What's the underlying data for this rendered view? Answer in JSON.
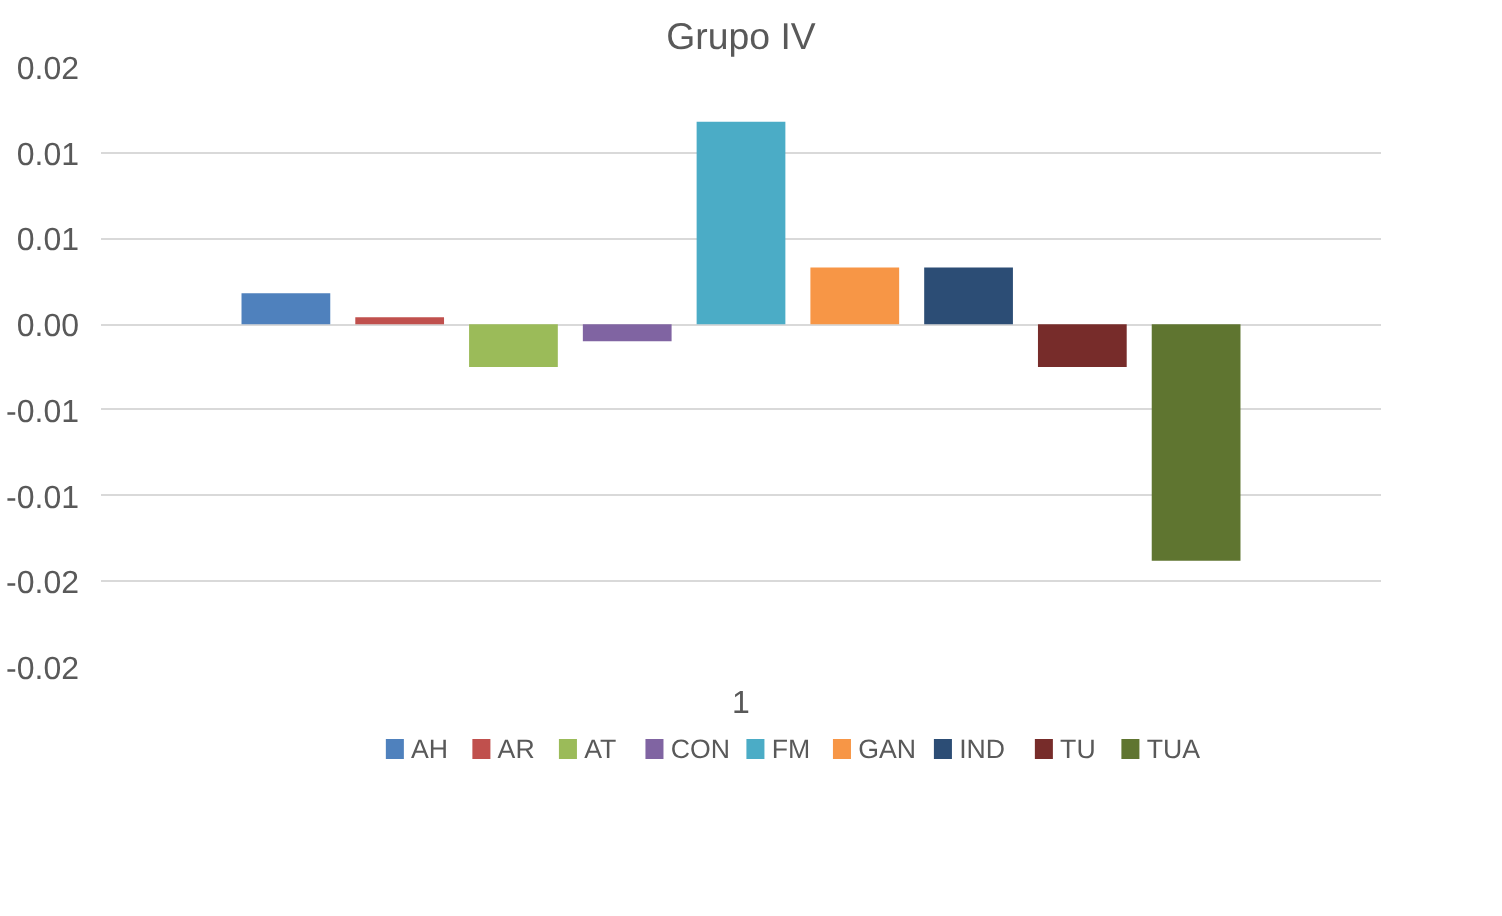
{
  "chart_data": {
    "type": "bar",
    "title": "Grupo IV",
    "categories": [
      "1"
    ],
    "series": [
      {
        "name": "AH",
        "color": "#4f81bd",
        "values": [
          0.0018
        ]
      },
      {
        "name": "AR",
        "color": "#c0504d",
        "values": [
          0.0004
        ]
      },
      {
        "name": "AT",
        "color": "#9bbb59",
        "values": [
          -0.0025
        ]
      },
      {
        "name": "CON",
        "color": "#8064a2",
        "values": [
          -0.001
        ]
      },
      {
        "name": "FM",
        "color": "#4bacc6",
        "values": [
          0.0118
        ]
      },
      {
        "name": "GAN",
        "color": "#f79646",
        "values": [
          0.0033
        ]
      },
      {
        "name": "IND",
        "color": "#2c4d75",
        "values": [
          0.0033
        ]
      },
      {
        "name": "TU",
        "color": "#772c2a",
        "values": [
          -0.0025
        ]
      },
      {
        "name": "TUA",
        "color": "#5f7530",
        "values": [
          -0.0138
        ]
      }
    ],
    "ylim": [
      -0.02,
      0.015
    ],
    "yticks": [
      {
        "value": 0.015,
        "label": "0.02"
      },
      {
        "value": 0.01,
        "label": "0.01"
      },
      {
        "value": 0.005,
        "label": "0.01"
      },
      {
        "value": 0,
        "label": "0.00"
      },
      {
        "value": -0.005,
        "label": "-0.01"
      },
      {
        "value": -0.01,
        "label": "-0.01"
      },
      {
        "value": -0.015,
        "label": "-0.02"
      },
      {
        "value": -0.02,
        "label": "-0.02"
      }
    ],
    "grid": "y",
    "legend": "bottom"
  }
}
